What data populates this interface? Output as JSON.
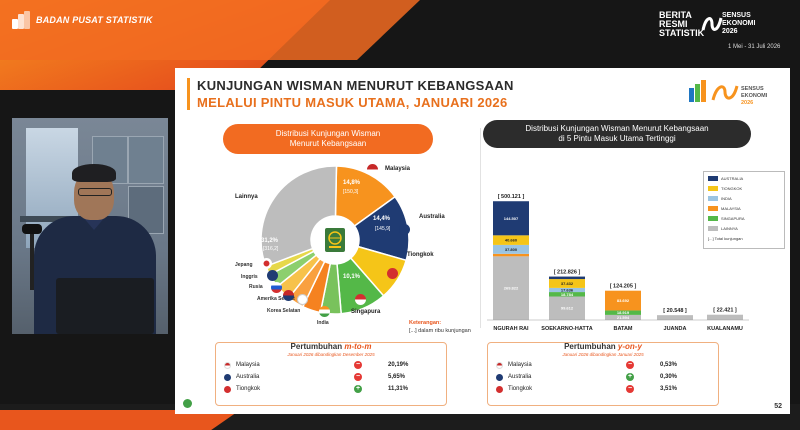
{
  "header": {
    "org_name": "BADAN PUSAT STATISTIK",
    "brs_line1": "BERITA",
    "brs_line2": "RESMI",
    "brs_line3": "STATISTIK",
    "se_line1": "SENSUS",
    "se_line2": "EKONOMI",
    "se_line3": "2026",
    "se_date": "1 Mei - 31 Juli 2026"
  },
  "slide": {
    "title_line1": "KUNJUNGAN WISMAN MENURUT KEBANGSAAN",
    "title_line2": "MELALUI PINTU MASUK UTAMA, JANUARI 2026",
    "logo_text": "SENSUS EKONOMI 2026",
    "left_section_title": "Distribusi Kunjungan Wisman\nMenurut Kebangsaan",
    "right_section_title": "Distribusi Kunjungan Wisman Menurut Kebangsaan\ndi 5 Pintu Masuk Utama Tertinggi",
    "keterangan_label": "Keterangan:",
    "keterangan_text": "[...] dalam ribu kunjungan",
    "page_number": "52",
    "colors": {
      "accent": "#f26b21",
      "dark": "#2c2c2c"
    }
  },
  "chart_data": [
    {
      "type": "pie",
      "title": "Distribusi Kunjungan Wisman Menurut Kebangsaan",
      "slices": [
        {
          "name": "Malaysia",
          "pct": "14,8%",
          "value": "[150,3]",
          "share": 14.8,
          "color": "#f7931e"
        },
        {
          "name": "Australia",
          "pct": "14,4%",
          "value": "[145,9]",
          "share": 14.4,
          "color": "#1f3b73"
        },
        {
          "name": "Tiongkok",
          "pct": "",
          "value": "",
          "share": 9.2,
          "color": "#f5c518"
        },
        {
          "name": "Singapura",
          "pct": "10,1%",
          "value": "",
          "share": 10.1,
          "color": "#54b848"
        },
        {
          "name": "India",
          "pct": "",
          "value": "",
          "share": 4.5,
          "color": "#79c25c"
        },
        {
          "name": "Korea Selatan",
          "pct": "",
          "value": "",
          "share": 4.0,
          "color": "#f58220"
        },
        {
          "name": "Amerika Serikat",
          "pct": "",
          "value": "",
          "share": 3.6,
          "color": "#f9a03f"
        },
        {
          "name": "Rusia",
          "pct": "",
          "value": "",
          "share": 3.5,
          "color": "#f7c24a"
        },
        {
          "name": "Inggris",
          "pct": "",
          "value": "",
          "share": 3.0,
          "color": "#8ccf6e"
        },
        {
          "name": "Jepang",
          "pct": "",
          "value": "",
          "share": 2.0,
          "color": "#e6d84a"
        },
        {
          "name": "Lainnya",
          "pct": "31,2%",
          "value": "[316,2]",
          "share": 31.2,
          "color": "#bdbdbd"
        }
      ]
    },
    {
      "type": "bar",
      "title": "Distribusi Kunjungan Wisman Menurut Kebangsaan di 5 Pintu Masuk Utama Tertinggi",
      "categories": [
        "NGURAH RAI",
        "SOEKARNO-HATTA",
        "BATAM",
        "JUANDA",
        "KUALANAMU"
      ],
      "totals": [
        "[ 500.121 ]",
        "[ 212.826 ]",
        "[ 124.205 ]",
        "[ 20.548 ]",
        "[ 22.421 ]"
      ],
      "total_values": [
        500121,
        212826,
        124205,
        20548,
        22421
      ],
      "series": [
        {
          "name": "AUSTRALIA",
          "color": "#1f3b73",
          "values": [
            144507,
            7425,
            0,
            0,
            0
          ],
          "labels": [
            "144.507",
            "7.425",
            "",
            "",
            ""
          ]
        },
        {
          "name": "TIONGKOK",
          "color": "#f5c518",
          "values": [
            40660,
            37432,
            0,
            0,
            0
          ],
          "labels": [
            "40.660",
            "37.432",
            "",
            "",
            ""
          ]
        },
        {
          "name": "INDIA",
          "color": "#9bc4e2",
          "values": [
            37800,
            17636,
            0,
            0,
            0
          ],
          "labels": [
            "37.800",
            "17.636",
            "",
            "",
            ""
          ]
        },
        {
          "name": "MALAYSIA",
          "color": "#f7931e",
          "values": [
            9918,
            0,
            83692,
            0,
            0
          ],
          "labels": [
            "9.918",
            "",
            "83.692",
            "",
            ""
          ]
        },
        {
          "name": "SINGAPURA",
          "color": "#54b848",
          "values": [
            0,
            18784,
            18919,
            0,
            0
          ],
          "labels": [
            "",
            "18.784",
            "18.919",
            "",
            ""
          ]
        },
        {
          "name": "LAINNYA",
          "color": "#bdbdbd",
          "values": [
            269822,
            99612,
            21594,
            20548,
            22421
          ],
          "labels": [
            "269.822",
            "99.612",
            "21.594",
            "",
            ""
          ]
        }
      ],
      "legend_note": "[...] Total kunjungan"
    }
  ],
  "panel_mtm": {
    "title": "Pertumbuhan",
    "title_em": "m-to-m",
    "subtitle": "Januari 2026 dibandingkan Desember 2025",
    "rows": [
      {
        "name": "Malaysia",
        "sign": "−",
        "value": "20,19%",
        "color": "#e53935"
      },
      {
        "name": "Australia",
        "sign": "−",
        "value": "5,65%",
        "color": "#e53935"
      },
      {
        "name": "Tiongkok",
        "sign": "+",
        "value": "11,31%",
        "color": "#43a047"
      }
    ]
  },
  "panel_yoy": {
    "title": "Pertumbuhan",
    "title_em": "y-on-y",
    "subtitle": "Januari 2026 dibandingkan Januari 2025",
    "rows": [
      {
        "name": "Malaysia",
        "sign": "−",
        "value": "0,53%",
        "color": "#e53935"
      },
      {
        "name": "Australia",
        "sign": "+",
        "value": "0,30%",
        "color": "#43a047"
      },
      {
        "name": "Tiongkok",
        "sign": "−",
        "value": "3,51%",
        "color": "#e53935"
      }
    ]
  }
}
